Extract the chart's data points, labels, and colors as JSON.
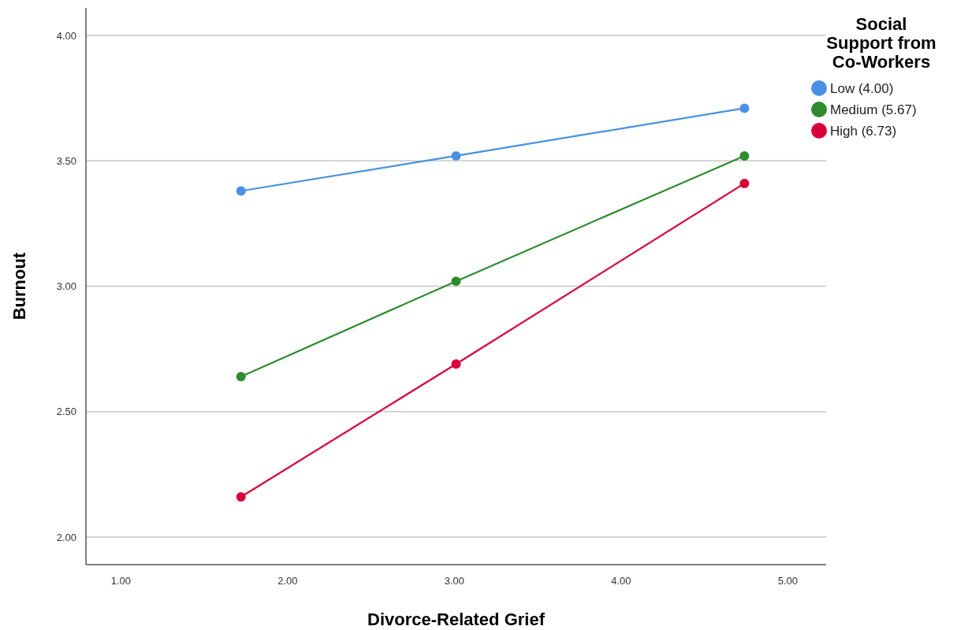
{
  "chart_data": {
    "type": "line",
    "xlabel": "Divorce-Related Grief",
    "ylabel": "Burnout",
    "legend_title": "Social Support from Co-Workers",
    "legend": "right",
    "grid": "y",
    "marker": "circle",
    "line_style": "solid",
    "x": [
      1.72,
      3.01,
      4.74
    ],
    "xlim": [
      0.79,
      5.23
    ],
    "xticks": [
      {
        "value": 1,
        "label": "1.00"
      },
      {
        "value": 2,
        "label": "2.00"
      },
      {
        "value": 3,
        "label": "3.00"
      },
      {
        "value": 4,
        "label": "4.00"
      },
      {
        "value": 5,
        "label": "5.00"
      }
    ],
    "ylim": [
      1.89,
      4.11
    ],
    "yticks": [
      {
        "value": 2,
        "label": "2.00"
      },
      {
        "value": 2.5,
        "label": "2.50"
      },
      {
        "value": 3,
        "label": "3.00"
      },
      {
        "value": 3.5,
        "label": "3.50"
      },
      {
        "value": 4,
        "label": "4.00"
      }
    ],
    "series": [
      {
        "name": "Low (4.00)",
        "color": "#4a90e2",
        "values": [
          3.38,
          3.52,
          3.71
        ]
      },
      {
        "name": "Medium (5.67)",
        "color": "#2e8b2e",
        "values": [
          2.64,
          3.02,
          3.52
        ]
      },
      {
        "name": "High (6.73)",
        "color": "#d8003a",
        "values": [
          2.16,
          2.69,
          3.41
        ]
      }
    ]
  }
}
